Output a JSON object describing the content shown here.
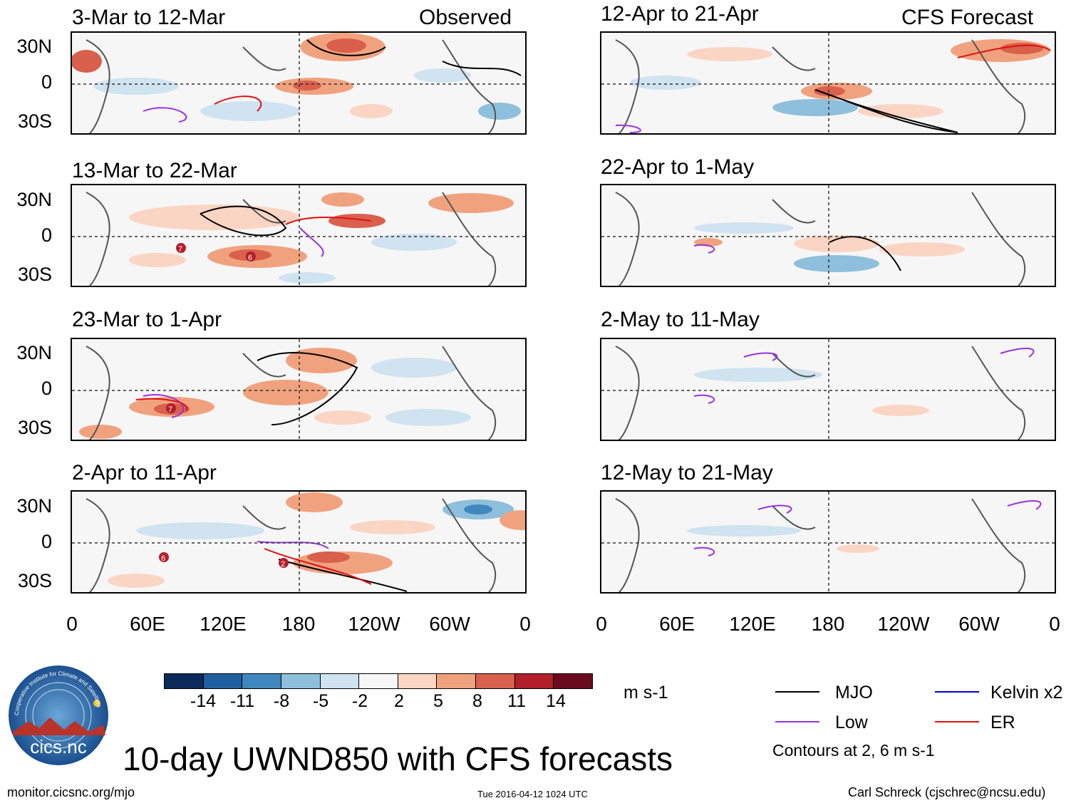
{
  "header": {
    "left_tag": "Observed",
    "right_tag": "CFS Forecast"
  },
  "panels_observed": [
    {
      "title": "3-Mar to 12-Mar"
    },
    {
      "title": "13-Mar to 22-Mar"
    },
    {
      "title": "23-Mar to 1-Apr"
    },
    {
      "title": "2-Apr to 11-Apr"
    }
  ],
  "panels_forecast": [
    {
      "title": "12-Apr to 21-Apr"
    },
    {
      "title": "22-Apr to 1-May"
    },
    {
      "title": "2-May to 11-May"
    },
    {
      "title": "12-May to 21-May"
    }
  ],
  "lat_labels": [
    "30N",
    "0",
    "30S"
  ],
  "lon_labels": [
    "0",
    "60E",
    "120E",
    "180",
    "120W",
    "60W",
    "0"
  ],
  "colorbar": {
    "colors": [
      "#0b2a5b",
      "#1f5fa0",
      "#3f87bf",
      "#8ebfdc",
      "#cfe3f0",
      "#f6f6f6",
      "#fbd5c4",
      "#f0a27e",
      "#d9604c",
      "#b21e2a",
      "#6b0a1e"
    ],
    "labels": [
      "-14",
      "-11",
      "-8",
      "-5",
      "-2",
      "2",
      "5",
      "8",
      "11",
      "14"
    ],
    "units": "m s-1"
  },
  "legend": {
    "items": [
      {
        "label": "MJO",
        "color": "#000000"
      },
      {
        "label": "Kelvin x2",
        "color": "#0000dd"
      },
      {
        "label": "Low",
        "color": "#9a32e0"
      },
      {
        "label": "ER",
        "color": "#e01010"
      }
    ],
    "contour_note": "Contours at 2, 6 m s-1"
  },
  "logo": {
    "text": "cics.nc",
    "ring_text": "Cooperative Institute for Climate and Satellites"
  },
  "title": "10-day UWND850 with CFS forecasts",
  "footer": {
    "left": "monitor.cicsnc.org/mjo",
    "center": "Tue 2016-04-12 1024 UTC",
    "right": "Carl Schreck (cjschrec@ncsu.edu)"
  },
  "storm_markers": [
    "7",
    "6",
    "7",
    "6",
    "2"
  ]
}
